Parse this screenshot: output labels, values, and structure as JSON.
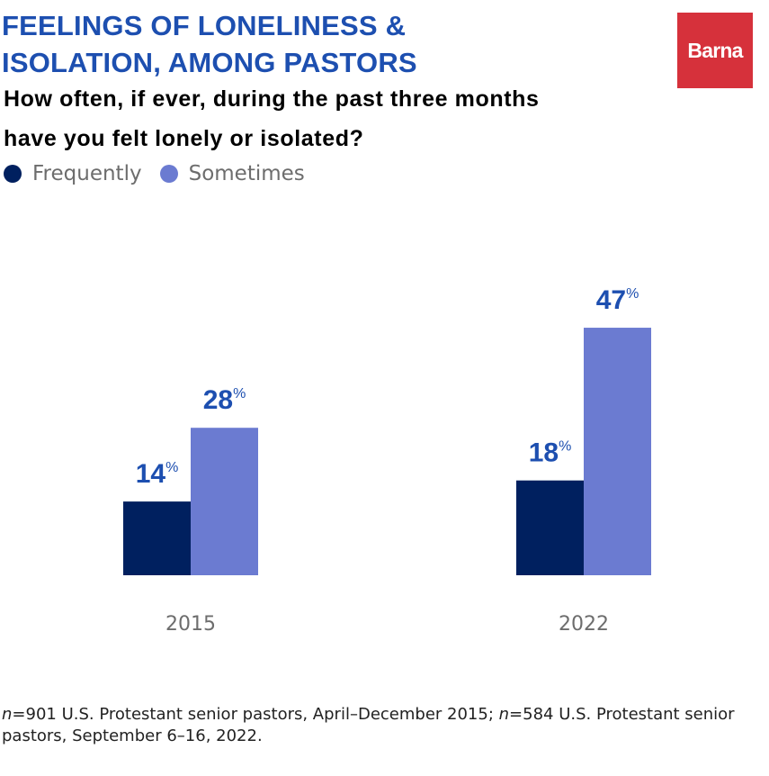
{
  "header": {
    "title_line1": "FEELINGS OF LONELINESS &",
    "title_line2": "ISOLATION, AMONG PASTORS",
    "subtitle_line1": "How often, if ever, during the past three months",
    "subtitle_line2": "have you felt lonely or isolated?",
    "logo_text": "Barna"
  },
  "colors": {
    "frequently": "#00205f",
    "sometimes": "#6b7bd1",
    "label": "#1d4fb0",
    "axis_text": "#6d6d6d"
  },
  "chart_data": {
    "type": "bar",
    "title": "FEELINGS OF LONELINESS & ISOLATION, AMONG PASTORS",
    "categories": [
      "2015",
      "2022"
    ],
    "series": [
      {
        "name": "Frequently",
        "values": [
          14,
          18
        ]
      },
      {
        "name": "Sometimes",
        "values": [
          28,
          47
        ]
      }
    ],
    "value_suffix": "%",
    "xlabel": "",
    "ylabel": "",
    "ylim": [
      0,
      47
    ],
    "grid": false,
    "legend_position": "top-left"
  },
  "footnote": {
    "n1": "n",
    "part1": "=901 U.S. Protestant senior pastors, April–December 2015; ",
    "n2": "n",
    "part2": "=584 U.S. Protestant senior pastors, September 6–16, 2022."
  }
}
